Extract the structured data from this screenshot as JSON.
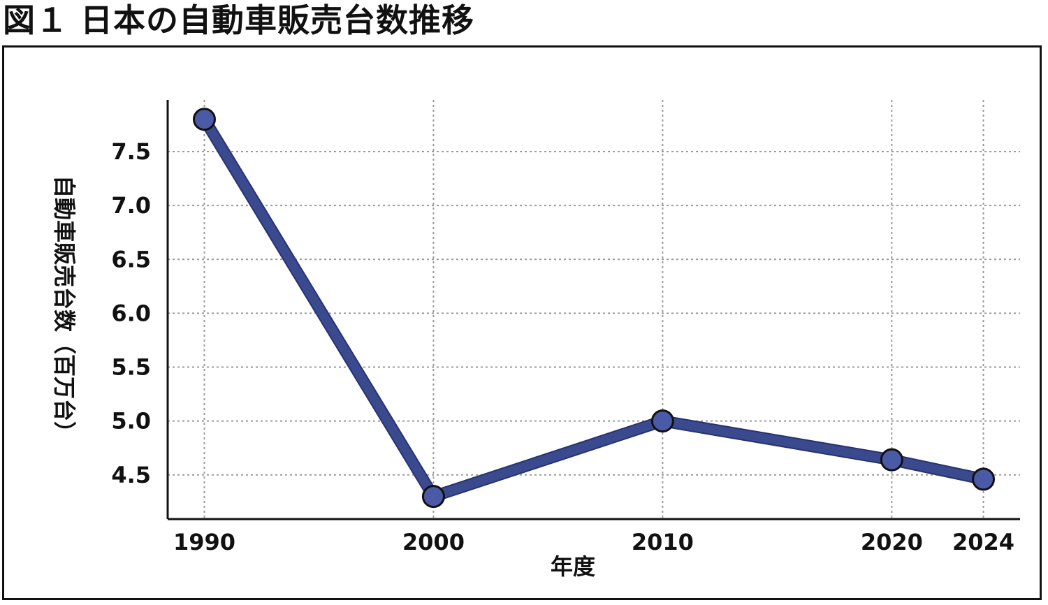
{
  "figure": {
    "title": "図１ 日本の自動車販売台数推移"
  },
  "chart_data": {
    "type": "line",
    "title": "",
    "xlabel": "年度",
    "ylabel": "自動車販売台数（百万台）",
    "x": [
      1990,
      2000,
      2010,
      2020,
      2024
    ],
    "series": [
      {
        "name": "",
        "values": [
          7.8,
          4.3,
          5.0,
          4.64,
          4.46
        ]
      }
    ],
    "xticks": [
      "1990",
      "2000",
      "2010",
      "2020",
      "2024"
    ],
    "yticks": [
      "4.5",
      "5.0",
      "5.5",
      "6.0",
      "6.5",
      "7.0",
      "7.5"
    ],
    "xlim": [
      1988.4,
      2025.6
    ],
    "ylim": [
      4.09,
      7.98
    ],
    "grid": true,
    "line_color": "#3b4a8f",
    "marker_color": "#4a5aa6"
  }
}
